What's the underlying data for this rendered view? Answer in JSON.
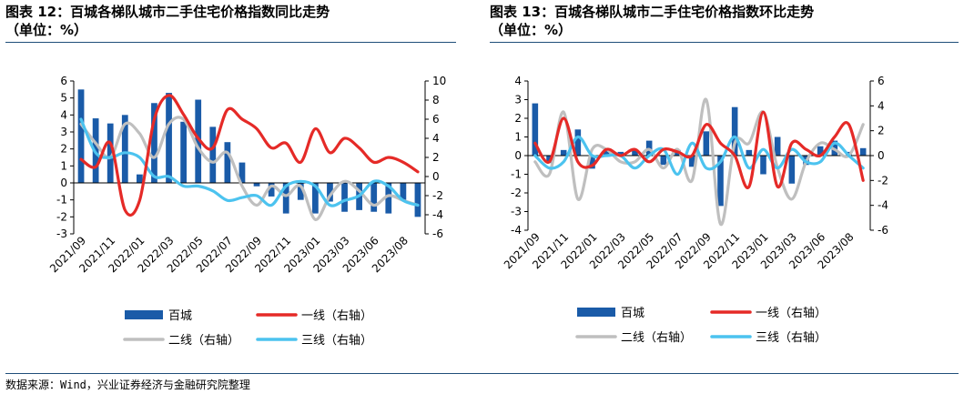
{
  "left": {
    "title_line1": "图表 12：百城各梯队城市二手住宅价格指数同比走势",
    "title_line2": "（单位：%）"
  },
  "right": {
    "title_line1": "图表 13：百城各梯队城市二手住宅价格指数环比走势",
    "title_line2": "（单位：%）"
  },
  "source": "数据来源：Wind，兴业证券经济与金融研究院整理",
  "colors": {
    "bar": "#1a5ba8",
    "tier1": "#e52a27",
    "tier2": "#bfbfbf",
    "tier3": "#4cc3ef"
  },
  "chart_data": [
    {
      "type": "bar",
      "title": "图表 12：百城各梯队城市二手住宅价格指数同比走势",
      "categories": [
        "2021/09",
        "2021/10",
        "2021/11",
        "2021/12",
        "2022/01",
        "2022/02",
        "2022/03",
        "2022/04",
        "2022/05",
        "2022/06",
        "2022/07",
        "2022/08",
        "2022/09",
        "2022/10",
        "2022/11",
        "2022/12",
        "2023/01",
        "2023/02",
        "2023/03",
        "2023/04",
        "2023/06",
        "2023/07",
        "2023/08",
        "2023/09"
      ],
      "tick_labels": [
        "2021/09",
        "2021/11",
        "2022/01",
        "2022/03",
        "2022/05",
        "2022/07",
        "2022/09",
        "2022/11",
        "2023/01",
        "2023/03",
        "2023/06",
        "2023/08"
      ],
      "ylim_left": [
        -3,
        6
      ],
      "ylim_right": [
        -6,
        10
      ],
      "yticks_left": [
        "-3",
        "-2",
        "-1",
        "0",
        "1",
        "2",
        "3",
        "4",
        "5",
        "6"
      ],
      "yticks_right": [
        "-6",
        "-4",
        "-2",
        "0",
        "2",
        "4",
        "6",
        "8",
        "10"
      ],
      "legend": [
        "百城",
        "一线（右轴）",
        "二线（右轴）",
        "三线（右轴）"
      ],
      "series": [
        {
          "name": "百城",
          "axis": "left",
          "kind": "bar",
          "values": [
            5.5,
            3.8,
            3.5,
            4.0,
            0.5,
            4.7,
            5.3,
            3.6,
            4.9,
            3.3,
            2.4,
            1.2,
            -0.2,
            -0.8,
            -1.8,
            -1.0,
            -1.8,
            -1.1,
            -1.7,
            -1.6,
            -1.7,
            -1.8,
            -1.0,
            -2.0
          ]
        },
        {
          "name": "一线（右轴）",
          "axis": "right",
          "kind": "line",
          "values": [
            1.8,
            1.0,
            3.5,
            -3.5,
            -2.5,
            6.0,
            8.5,
            6.5,
            4.0,
            3.0,
            7.0,
            6.0,
            5.0,
            3.0,
            3.5,
            1.5,
            5.0,
            2.5,
            4.0,
            3.0,
            1.5,
            2.0,
            1.5,
            0.5
          ]
        },
        {
          "name": "二线（右轴）",
          "axis": "right",
          "kind": "line",
          "values": [
            5.5,
            3.5,
            2.0,
            5.5,
            4.5,
            2.0,
            5.5,
            6.0,
            3.0,
            1.5,
            2.5,
            -1.0,
            -3.0,
            -1.0,
            -2.0,
            -1.0,
            -4.5,
            -2.0,
            -0.5,
            -1.5,
            -3.0,
            -2.0,
            -2.5,
            -3.0
          ]
        },
        {
          "name": "三线（右轴）",
          "axis": "right",
          "kind": "line",
          "values": [
            6.0,
            2.5,
            2.0,
            2.5,
            2.0,
            0.0,
            0.0,
            -1.0,
            -1.0,
            -1.5,
            -2.5,
            -2.2,
            -2.0,
            -3.0,
            -1.0,
            -0.5,
            -1.0,
            -3.0,
            -2.5,
            -2.0,
            -0.5,
            -1.0,
            -2.5,
            -3.0
          ]
        }
      ]
    },
    {
      "type": "bar",
      "title": "图表 13：百城各梯队城市二手住宅价格指数环比走势",
      "categories": [
        "2021/09",
        "2021/10",
        "2021/11",
        "2021/12",
        "2022/01",
        "2022/02",
        "2022/03",
        "2022/04",
        "2022/05",
        "2022/06",
        "2022/07",
        "2022/08",
        "2022/09",
        "2022/10",
        "2022/11",
        "2022/12",
        "2023/01",
        "2023/02",
        "2023/03",
        "2023/04",
        "2023/06",
        "2023/07",
        "2023/08",
        "2023/09"
      ],
      "tick_labels": [
        "2021/09",
        "2021/11",
        "2022/01",
        "2022/03",
        "2022/05",
        "2022/07",
        "2022/09",
        "2022/11",
        "2023/01",
        "2023/03",
        "2023/06",
        "2023/08"
      ],
      "ylim_left": [
        -4,
        4
      ],
      "ylim_right": [
        -6,
        6
      ],
      "yticks_left": [
        "-4",
        "-3",
        "-2",
        "-1",
        "0",
        "1",
        "2",
        "3",
        "4"
      ],
      "yticks_right": [
        "-6",
        "-4",
        "-2",
        "0",
        "2",
        "4",
        "6"
      ],
      "legend": [
        "百城",
        "一线（右轴）",
        "二线（右轴）",
        "三线（右轴）"
      ],
      "series": [
        {
          "name": "百城",
          "axis": "left",
          "kind": "bar",
          "values": [
            2.8,
            -0.4,
            0.3,
            1.4,
            -0.7,
            0.3,
            0.2,
            0.3,
            0.8,
            -0.5,
            0.3,
            -0.6,
            1.3,
            -2.7,
            2.6,
            0.3,
            -1.0,
            1.0,
            -1.5,
            -0.5,
            0.5,
            0.8,
            0.2,
            0.4
          ]
        },
        {
          "name": "一线（右轴）",
          "axis": "right",
          "kind": "line",
          "values": [
            1.0,
            -0.5,
            3.0,
            -0.5,
            -0.8,
            0.5,
            0.0,
            0.5,
            -0.5,
            0.5,
            0.3,
            0.0,
            2.5,
            1.0,
            0.0,
            -2.5,
            3.5,
            -2.5,
            1.0,
            0.5,
            0.0,
            1.5,
            2.5,
            -2.0
          ]
        },
        {
          "name": "二线（右轴）",
          "axis": "right",
          "kind": "line",
          "values": [
            -0.5,
            -1.5,
            3.5,
            -3.5,
            0.5,
            0.5,
            -0.5,
            -0.5,
            0.5,
            -1.0,
            0.5,
            -2.0,
            4.5,
            -5.5,
            1.0,
            1.0,
            3.5,
            -1.0,
            -3.5,
            -0.5,
            1.0,
            0.5,
            0.0,
            2.5
          ]
        },
        {
          "name": "三线（右轴）",
          "axis": "right",
          "kind": "line",
          "values": [
            0.0,
            -1.0,
            -0.5,
            1.5,
            0.0,
            0.0,
            0.0,
            -1.0,
            0.0,
            0.5,
            -1.5,
            1.0,
            -1.0,
            -0.5,
            1.5,
            -1.0,
            0.5,
            -1.0,
            0.5,
            -0.5,
            -0.5,
            1.0,
            0.0,
            -1.0
          ]
        }
      ]
    }
  ]
}
